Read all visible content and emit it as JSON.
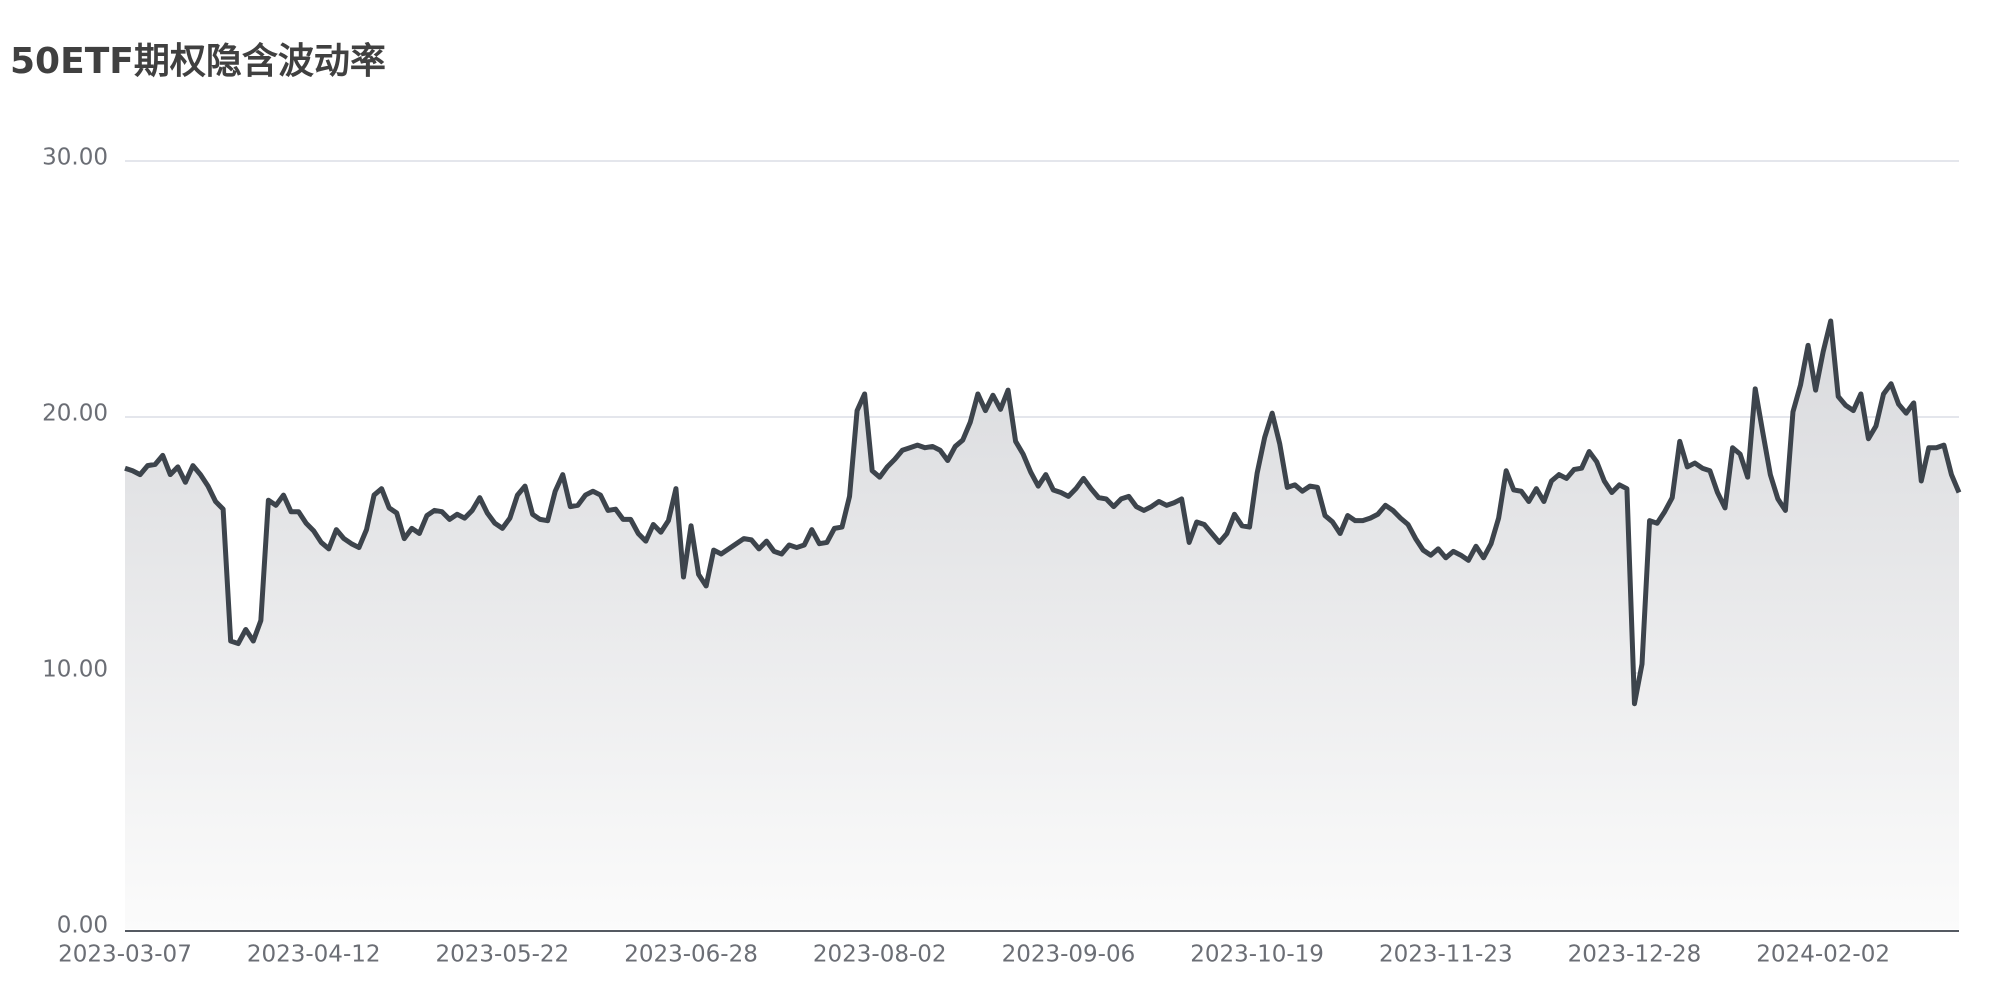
{
  "chart_data": {
    "type": "line",
    "title": "50ETF期权隐含波动率",
    "categories": [
      "2023-03-07",
      null,
      null,
      null,
      null,
      null,
      null,
      null,
      null,
      null,
      null,
      null,
      null,
      null,
      null,
      null,
      null,
      null,
      null,
      null,
      null,
      null,
      null,
      null,
      null,
      "2023-04-12",
      null,
      null,
      null,
      null,
      null,
      null,
      null,
      null,
      null,
      null,
      null,
      null,
      null,
      null,
      null,
      null,
      null,
      null,
      null,
      null,
      null,
      null,
      null,
      null,
      "2023-05-22",
      null,
      null,
      null,
      null,
      null,
      null,
      null,
      null,
      null,
      null,
      null,
      null,
      null,
      null,
      null,
      null,
      null,
      null,
      null,
      null,
      null,
      null,
      null,
      null,
      "2023-06-28",
      null,
      null,
      null,
      null,
      null,
      null,
      null,
      null,
      null,
      null,
      null,
      null,
      null,
      null,
      null,
      null,
      null,
      null,
      null,
      null,
      null,
      null,
      null,
      null,
      "2023-08-02",
      null,
      null,
      null,
      null,
      null,
      null,
      null,
      null,
      null,
      null,
      null,
      null,
      null,
      null,
      null,
      null,
      null,
      null,
      null,
      null,
      null,
      null,
      null,
      null,
      "2023-09-06",
      null,
      null,
      null,
      null,
      null,
      null,
      null,
      null,
      null,
      null,
      null,
      null,
      null,
      null,
      null,
      null,
      null,
      null,
      null,
      null,
      null,
      null,
      null,
      null,
      "2023-10-19",
      null,
      null,
      null,
      null,
      null,
      null,
      null,
      null,
      null,
      null,
      null,
      null,
      null,
      null,
      null,
      null,
      null,
      null,
      null,
      null,
      null,
      null,
      null,
      null,
      "2023-11-23",
      null,
      null,
      null,
      null,
      null,
      null,
      null,
      null,
      null,
      null,
      null,
      null,
      null,
      null,
      null,
      null,
      null,
      null,
      null,
      null,
      null,
      null,
      null,
      null,
      "2023-12-28",
      null,
      null,
      null,
      null,
      null,
      null,
      null,
      null,
      null,
      null,
      null,
      null,
      null,
      null,
      null,
      null,
      null,
      null,
      null,
      null,
      null,
      null,
      null,
      null,
      "2024-02-02",
      null,
      null,
      null,
      null,
      null,
      null,
      null,
      null,
      null,
      null,
      null,
      null,
      null,
      null,
      null,
      null,
      null,
      null
    ],
    "values": [
      18.0,
      17.9,
      17.75,
      18.1,
      18.15,
      18.5,
      17.75,
      18.05,
      17.45,
      18.1,
      17.75,
      17.3,
      16.7,
      16.4,
      11.25,
      11.15,
      11.7,
      11.25,
      12.05,
      16.75,
      16.55,
      16.95,
      16.3,
      16.3,
      15.85,
      15.55,
      15.1,
      14.85,
      15.6,
      15.25,
      15.05,
      14.9,
      15.6,
      16.95,
      17.2,
      16.45,
      16.25,
      15.25,
      15.65,
      15.45,
      16.15,
      16.35,
      16.3,
      16.0,
      16.2,
      16.05,
      16.35,
      16.85,
      16.25,
      15.85,
      15.65,
      16.05,
      16.95,
      17.3,
      16.2,
      16.0,
      15.95,
      17.1,
      17.75,
      16.5,
      16.55,
      16.95,
      17.1,
      16.95,
      16.35,
      16.4,
      16.0,
      16.0,
      15.45,
      15.15,
      15.8,
      15.5,
      15.95,
      17.2,
      13.75,
      15.75,
      13.85,
      13.4,
      14.8,
      14.65,
      14.85,
      15.05,
      15.25,
      15.2,
      14.85,
      15.15,
      14.75,
      14.65,
      15.0,
      14.9,
      15.0,
      15.6,
      15.05,
      15.1,
      15.65,
      15.7,
      16.9,
      20.25,
      20.9,
      17.9,
      17.65,
      18.05,
      18.35,
      18.7,
      18.8,
      18.9,
      18.8,
      18.85,
      18.7,
      18.3,
      18.85,
      19.1,
      19.8,
      20.9,
      20.25,
      20.85,
      20.3,
      21.05,
      19.05,
      18.55,
      17.85,
      17.3,
      17.75,
      17.15,
      17.05,
      16.9,
      17.2,
      17.6,
      17.2,
      16.85,
      16.8,
      16.5,
      16.8,
      16.9,
      16.5,
      16.35,
      16.5,
      16.7,
      16.55,
      16.65,
      16.8,
      15.1,
      15.9,
      15.8,
      15.45,
      15.1,
      15.45,
      16.2,
      15.75,
      15.7,
      17.8,
      19.2,
      20.15,
      18.95,
      17.25,
      17.35,
      17.1,
      17.3,
      17.25,
      16.15,
      15.9,
      15.45,
      16.15,
      15.95,
      15.95,
      16.05,
      16.2,
      16.55,
      16.35,
      16.05,
      15.8,
      15.25,
      14.8,
      14.6,
      14.85,
      14.5,
      14.75,
      14.6,
      14.4,
      14.95,
      14.5,
      15.05,
      16.05,
      17.9,
      17.15,
      17.1,
      16.7,
      17.2,
      16.7,
      17.5,
      17.75,
      17.6,
      17.95,
      18.0,
      18.65,
      18.25,
      17.5,
      17.05,
      17.35,
      17.2,
      8.8,
      10.35,
      15.95,
      15.85,
      16.3,
      16.85,
      19.05,
      18.05,
      18.2,
      18.0,
      17.9,
      17.05,
      16.45,
      18.8,
      18.55,
      17.65,
      21.1,
      19.4,
      17.75,
      16.8,
      16.35,
      20.2,
      21.25,
      22.8,
      21.05,
      22.55,
      23.75,
      20.8,
      20.45,
      20.25,
      20.9,
      19.15,
      19.65,
      20.9,
      21.3,
      20.5,
      20.15,
      20.55,
      17.5,
      18.8,
      18.8,
      18.9,
      17.75,
      17.05
    ],
    "color": "#3d444c",
    "ylim": [
      0,
      30
    ],
    "yticks": [
      {
        "value": 0,
        "label": "0.00"
      },
      {
        "value": 10,
        "label": "10.00"
      },
      {
        "value": 20,
        "label": "20.00"
      },
      {
        "value": 30,
        "label": "30.00"
      }
    ],
    "grid": true
  }
}
